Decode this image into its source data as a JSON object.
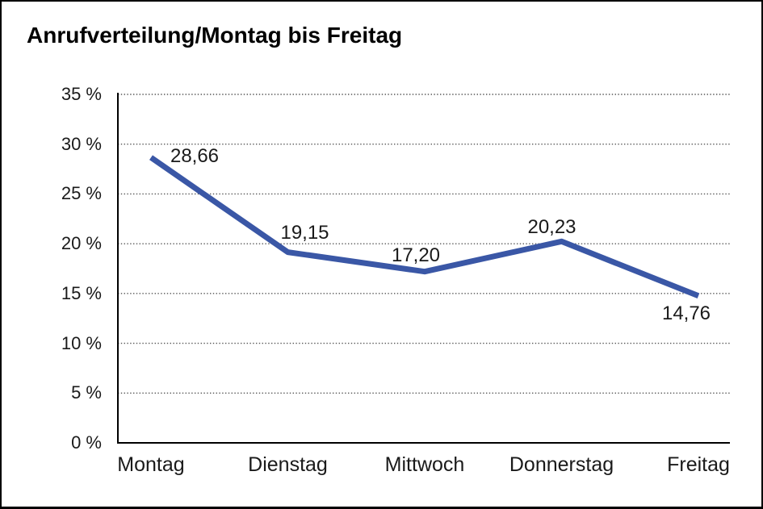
{
  "chart_data": {
    "type": "line",
    "title": "Anrufverteilung/Montag bis Freitag",
    "categories": [
      "Montag",
      "Dienstag",
      "Mittwoch",
      "Donnerstag",
      "Freitag"
    ],
    "values": [
      28.66,
      19.15,
      17.2,
      20.23,
      14.76
    ],
    "value_labels": [
      "28,66",
      "19,15",
      "17,20",
      "20,23",
      "14,76"
    ],
    "series_name": "Anrufverteilung",
    "xlabel": "",
    "ylabel": "",
    "ylim": [
      0,
      35
    ],
    "y_tick_step": 5,
    "y_ticks": [
      {
        "value": 0,
        "label": "0 %"
      },
      {
        "value": 5,
        "label": "5 %"
      },
      {
        "value": 10,
        "label": "10 %"
      },
      {
        "value": 15,
        "label": "15 %"
      },
      {
        "value": 20,
        "label": "20 %"
      },
      {
        "value": 25,
        "label": "25 %"
      },
      {
        "value": 30,
        "label": "30 %"
      },
      {
        "value": 35,
        "label": "35 %"
      }
    ],
    "grid": "dotted-horizontal",
    "legend": "none",
    "colors": {
      "line": "#3A57A6",
      "axis": "#000000",
      "gridline": "#555555",
      "text": "#1a1a1a",
      "background": "#ffffff"
    }
  }
}
